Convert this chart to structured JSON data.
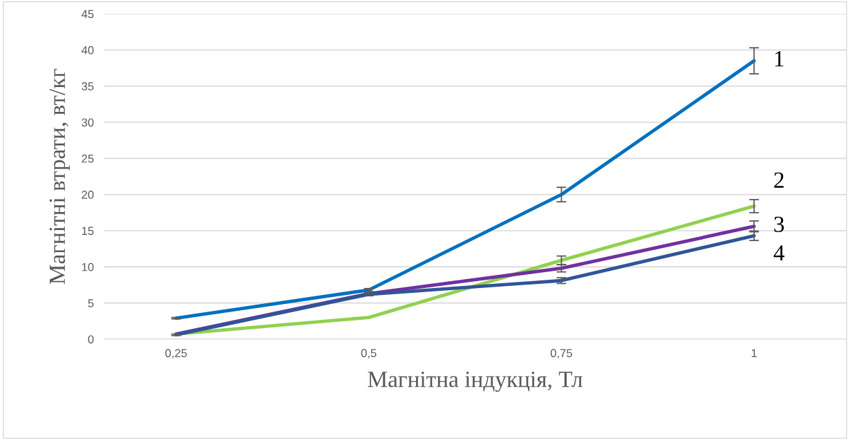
{
  "chart_data": {
    "type": "line",
    "xlabel": "Магнітна індукція, Тл",
    "ylabel": "Магнітні втрати, вт/кг",
    "categories": [
      "0,25",
      "0,5",
      "0,75",
      "1"
    ],
    "series": [
      {
        "name": "1",
        "color": "#0070c0",
        "values": [
          2.9,
          6.8,
          20.0,
          38.5
        ],
        "errors": [
          0.1,
          0.2,
          1.0,
          1.8
        ]
      },
      {
        "name": "2",
        "color": "#92d050",
        "values": [
          0.7,
          3.0,
          10.9,
          18.4
        ],
        "errors": [
          null,
          null,
          0.6,
          0.9
        ]
      },
      {
        "name": "3",
        "color": "#7030a0",
        "values": [
          0.7,
          6.3,
          9.8,
          15.6
        ],
        "errors": [
          null,
          null,
          0.5,
          0.75
        ]
      },
      {
        "name": "4",
        "color": "#2f5597",
        "values": [
          0.6,
          6.2,
          8.1,
          14.3
        ],
        "errors": [
          0.1,
          0.2,
          0.4,
          0.65
        ]
      }
    ],
    "ylim": [
      0,
      45
    ],
    "yticks": [
      0,
      5,
      10,
      15,
      20,
      25,
      30,
      35,
      40,
      45
    ],
    "grid": "y",
    "legend": false,
    "marker": "none",
    "line_style": "solid"
  }
}
